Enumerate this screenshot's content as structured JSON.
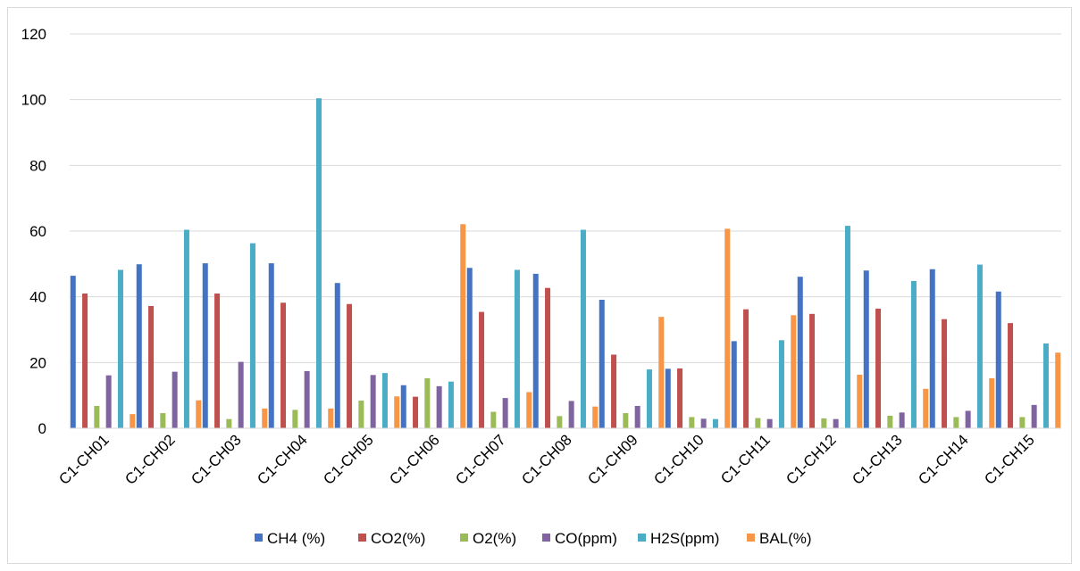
{
  "chart_data": {
    "type": "bar",
    "title": "",
    "xlabel": "",
    "ylabel": "",
    "ylim": [
      0,
      120
    ],
    "yticks": [
      0,
      20,
      40,
      60,
      80,
      100,
      120
    ],
    "grid": true,
    "legend_position": "bottom",
    "categories": [
      "C1-CH01",
      "C1-CH02",
      "C1-CH03",
      "C1-CH04",
      "C1-CH05",
      "C1-CH06",
      "C1-CH07",
      "C1-CH08",
      "C1-CH09",
      "C1-CH10",
      "C1-CH11",
      "C1-CH12",
      "C1-CH13",
      "C1-CH14",
      "C1-CH15"
    ],
    "series": [
      {
        "name": "CH4 (%)",
        "color": "#4472c4",
        "values": [
          46.4,
          49.9,
          50.2,
          50.2,
          44.2,
          13.1,
          48.8,
          47.0,
          39.1,
          18.1,
          26.5,
          46.1,
          48.0,
          48.4,
          41.6
        ]
      },
      {
        "name": "CO2(%)",
        "color": "#c0504d",
        "values": [
          41.0,
          37.2,
          41.0,
          38.2,
          37.8,
          9.6,
          35.4,
          42.7,
          22.4,
          18.2,
          36.2,
          34.8,
          36.4,
          33.2,
          32.0
        ]
      },
      {
        "name": "O2(%)",
        "color": "#9bbb59",
        "values": [
          6.8,
          4.6,
          2.8,
          5.6,
          8.4,
          15.2,
          5.0,
          3.7,
          4.6,
          3.4,
          3.1,
          3.0,
          3.8,
          3.4,
          3.4
        ]
      },
      {
        "name": "CO(ppm)",
        "color": "#8064a2",
        "values": [
          16.1,
          17.2,
          20.2,
          17.4,
          16.2,
          12.8,
          9.2,
          8.3,
          6.8,
          2.9,
          2.8,
          2.8,
          4.8,
          5.3,
          7.1
        ]
      },
      {
        "name": "H2S(ppm)",
        "color": "#4bacc6",
        "values": [
          48.2,
          60.4,
          56.3,
          100.4,
          16.8,
          14.2,
          48.2,
          60.4,
          17.9,
          2.8,
          26.8,
          61.6,
          44.8,
          49.8,
          25.8
        ]
      },
      {
        "name": "BAL(%)",
        "color": "#f79646",
        "values": [
          4.3,
          8.5,
          6.0,
          6.0,
          9.7,
          62.1,
          11.0,
          6.6,
          33.9,
          60.7,
          34.4,
          16.3,
          12.0,
          15.2,
          23.0
        ]
      }
    ]
  }
}
